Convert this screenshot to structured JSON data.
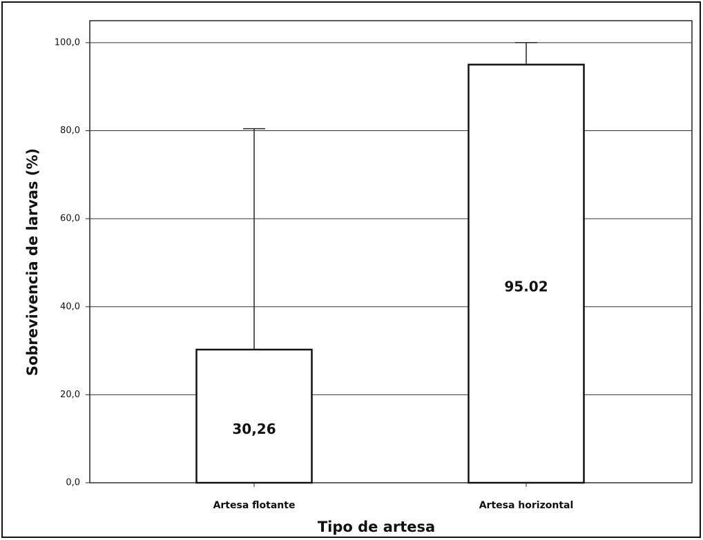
{
  "chart_data": {
    "type": "bar",
    "categories": [
      "Artesa flotante",
      "Artesa horizontal"
    ],
    "values": [
      30.26,
      95.02
    ],
    "value_labels": [
      "30,26",
      "95.02"
    ],
    "errors": [
      50.2,
      5.0
    ],
    "color": "#ffffff",
    "xlabel": "Tipo de artesa",
    "ylabel": "Sobrevivencia de larvas (%)",
    "ylim": [
      0,
      105
    ],
    "yticks": [
      {
        "value": 0,
        "label": "0,0"
      },
      {
        "value": 20,
        "label": "20,0"
      },
      {
        "value": 40,
        "label": "40,0"
      },
      {
        "value": 60,
        "label": "60,0"
      },
      {
        "value": 80,
        "label": "80,0"
      },
      {
        "value": 100,
        "label": "100,0"
      }
    ],
    "grid": true
  }
}
